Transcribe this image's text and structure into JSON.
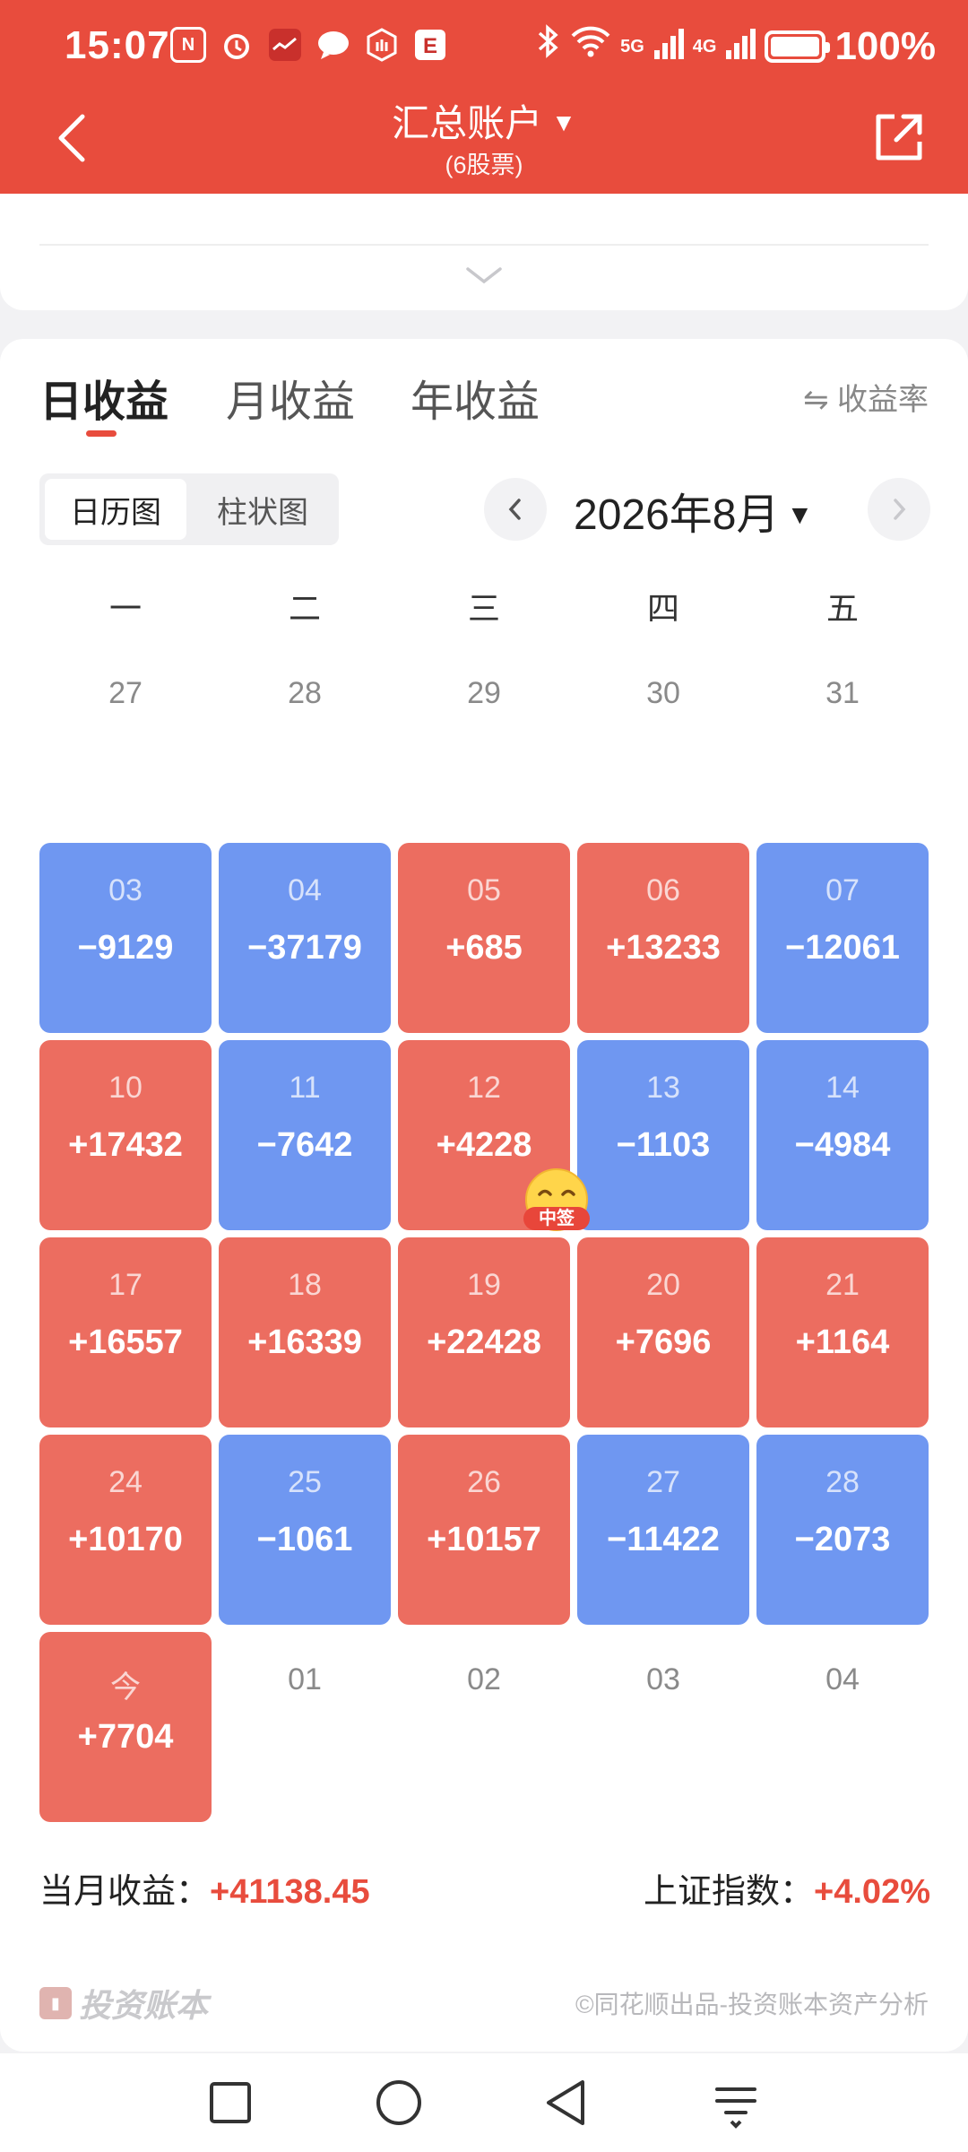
{
  "status_bar": {
    "time": "15:07",
    "battery": "100%",
    "signal_5g": "5G",
    "signal_4g": "4G",
    "battery_level": 1.0
  },
  "nav": {
    "title": "汇总账户",
    "subtitle": "(6股票)"
  },
  "tabs": [
    {
      "label": "日收益",
      "active": true
    },
    {
      "label": "月收益",
      "active": false
    },
    {
      "label": "年收益",
      "active": false
    }
  ],
  "rate_toggle": "⇋ 收益率",
  "view_toggle": [
    {
      "label": "日历图",
      "active": true
    },
    {
      "label": "柱状图",
      "active": false
    }
  ],
  "month_label": "2026年8月",
  "weekdays": [
    "一",
    "二",
    "三",
    "四",
    "五"
  ],
  "calendar": {
    "rows": [
      [
        {
          "day": "27",
          "value": "",
          "type": "plain"
        },
        {
          "day": "28",
          "value": "",
          "type": "plain"
        },
        {
          "day": "29",
          "value": "",
          "type": "plain"
        },
        {
          "day": "30",
          "value": "",
          "type": "plain"
        },
        {
          "day": "31",
          "value": "",
          "type": "plain"
        }
      ],
      [
        {
          "day": "03",
          "value": "−9129",
          "type": "neg"
        },
        {
          "day": "04",
          "value": "−37179",
          "type": "neg"
        },
        {
          "day": "05",
          "value": "+685",
          "type": "pos"
        },
        {
          "day": "06",
          "value": "+13233",
          "type": "pos"
        },
        {
          "day": "07",
          "value": "−12061",
          "type": "neg"
        }
      ],
      [
        {
          "day": "10",
          "value": "+17432",
          "type": "pos"
        },
        {
          "day": "11",
          "value": "−7642",
          "type": "neg"
        },
        {
          "day": "12",
          "value": "+4228",
          "type": "pos"
        },
        {
          "day": "13",
          "value": "−1103",
          "type": "neg"
        },
        {
          "day": "14",
          "value": "−4984",
          "type": "neg"
        }
      ],
      [
        {
          "day": "17",
          "value": "+16557",
          "type": "pos"
        },
        {
          "day": "18",
          "value": "+16339",
          "type": "pos"
        },
        {
          "day": "19",
          "value": "+22428",
          "type": "pos"
        },
        {
          "day": "20",
          "value": "+7696",
          "type": "pos"
        },
        {
          "day": "21",
          "value": "+1164",
          "type": "pos"
        }
      ],
      [
        {
          "day": "24",
          "value": "+10170",
          "type": "pos"
        },
        {
          "day": "25",
          "value": "−1061",
          "type": "neg"
        },
        {
          "day": "26",
          "value": "+10157",
          "type": "pos"
        },
        {
          "day": "27",
          "value": "−11422",
          "type": "neg"
        },
        {
          "day": "28",
          "value": "−2073",
          "type": "neg"
        }
      ],
      [
        {
          "day": "今",
          "value": "+7704",
          "type": "pos"
        },
        {
          "day": "01",
          "value": "",
          "type": "plain"
        },
        {
          "day": "02",
          "value": "",
          "type": "plain"
        },
        {
          "day": "03",
          "value": "",
          "type": "plain"
        },
        {
          "day": "04",
          "value": "",
          "type": "plain"
        }
      ]
    ],
    "badge_label": "中签"
  },
  "summary": {
    "month_label": "当月收益：",
    "month_value": "+41138.45",
    "index_label": "上证指数：",
    "index_value": "+4.02%"
  },
  "footer": {
    "brand": "投资账本",
    "credit": "©同花顺出品-投资账本资产分析"
  },
  "colors": {
    "accent": "#e84c3d",
    "positive": "#ec6d60",
    "negative": "#6f97f1"
  }
}
